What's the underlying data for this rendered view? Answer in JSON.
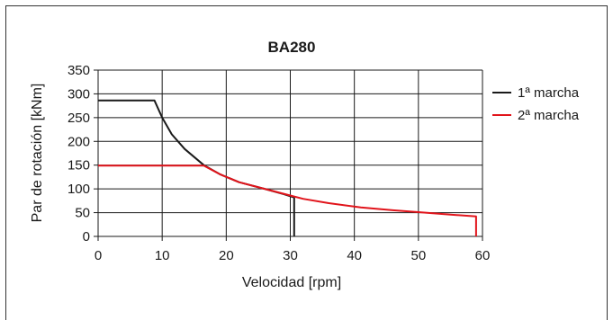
{
  "chart_data": {
    "type": "line",
    "title": "BA280",
    "xlabel": "Velocidad [rpm]",
    "ylabel": "Par de rotación [kNm]",
    "xlim": [
      0,
      60
    ],
    "ylim": [
      0,
      350
    ],
    "xticks": [
      "0",
      "10",
      "20",
      "30",
      "40",
      "50",
      "60"
    ],
    "yticks": [
      "0",
      "50",
      "100",
      "150",
      "200",
      "250",
      "300",
      "350"
    ],
    "grid": true,
    "legend_position": "right",
    "series": [
      {
        "name": "1ª marcha",
        "color": "#1a1a1a",
        "x": [
          0,
          8.8,
          10,
          11.5,
          13.5,
          16.5,
          19,
          22,
          26,
          29,
          30.6,
          30.6
        ],
        "y": [
          286,
          286,
          250,
          215,
          184,
          150,
          131,
          114,
          100,
          89,
          82,
          0
        ]
      },
      {
        "name": "2ª marcha",
        "color": "#e1141b",
        "x": [
          0,
          16.5,
          19,
          22,
          26,
          30,
          32,
          36,
          41,
          46,
          50,
          55,
          59,
          59
        ],
        "y": [
          149,
          149,
          131,
          114,
          100,
          86,
          79,
          70,
          61,
          55,
          51,
          46,
          42,
          0
        ]
      }
    ]
  }
}
